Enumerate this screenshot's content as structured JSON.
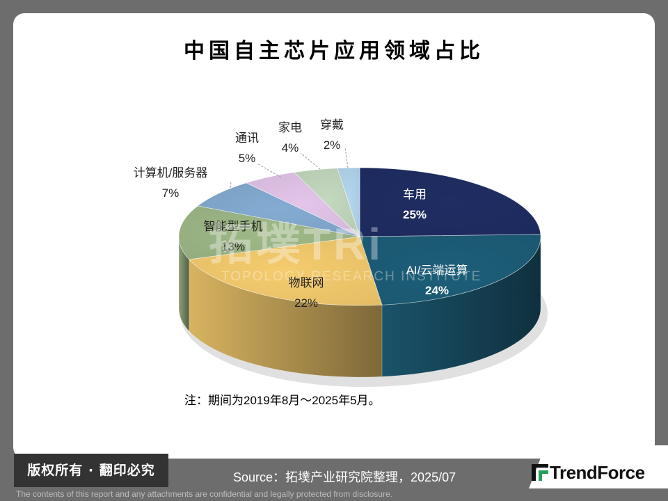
{
  "title": "中国自主芯片应用领域占比",
  "chart_data": {
    "type": "pie",
    "title": "中国自主芯片应用领域占比",
    "slices": [
      {
        "label": "车用",
        "value": 25,
        "display": "25%",
        "color": "#1d2a5c"
      },
      {
        "label": "AI/云端运算",
        "value": 24,
        "display": "24%",
        "color": "#1b5770"
      },
      {
        "label": "物联网",
        "value": 22,
        "display": "22%",
        "color": "#e3bd66"
      },
      {
        "label": "智能型手机",
        "value": 13,
        "display": "13%",
        "color": "#93ab7e"
      },
      {
        "label": "计算机/服务器",
        "value": 7,
        "display": "7%",
        "color": "#7a9fc2"
      },
      {
        "label": "通讯",
        "value": 5,
        "display": "5%",
        "color": "#d2b6d8"
      },
      {
        "label": "家电",
        "value": 4,
        "display": "4%",
        "color": "#b5c9b1"
      },
      {
        "label": "穿戴",
        "value": 2,
        "display": "2%",
        "color": "#a7c7dd"
      }
    ]
  },
  "note": "注：期间为2019年8月～2025年5月。",
  "footer": {
    "copyright": "版权所有 · 翻印必究",
    "source": "Source：拓墣产业研究院整理，2025/07",
    "brand": "TrendForce",
    "disclaimer": "The contents of this report and any attachments are confidential and legally protected from disclosure."
  },
  "watermark": {
    "main": "拓墣TRi",
    "sub": "TOPOLOGY RESEARCH INSTITUTE"
  }
}
